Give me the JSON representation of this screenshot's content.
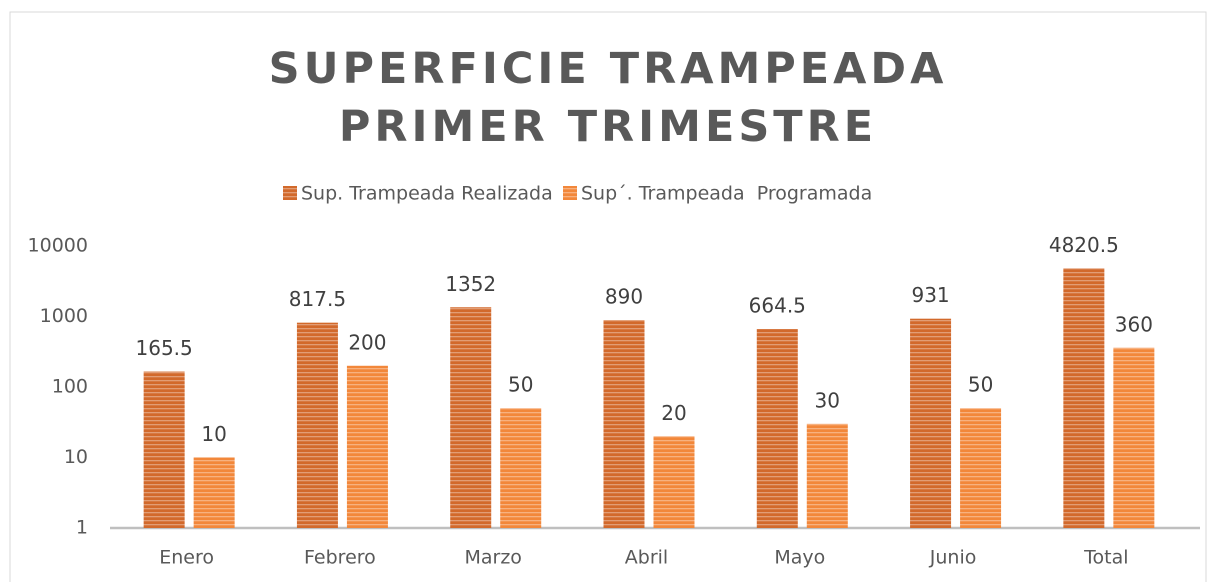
{
  "chart_data": {
    "type": "bar",
    "title": "SUPERFICIE TRAMPEADA PRIMER TRIMESTRE",
    "categories": [
      "Enero",
      "Febrero",
      "Marzo",
      "Abril",
      "Mayo",
      "Junio",
      "Total"
    ],
    "series": [
      {
        "name": "Sup. Trampeada Realizada",
        "color": "#d2692b",
        "values": [
          165.5,
          817.5,
          1352,
          890,
          664.5,
          931,
          4820.5
        ]
      },
      {
        "name": "Sup´. Trampeada  Programada",
        "color": "#f2873a",
        "values": [
          10,
          200,
          50,
          20,
          30,
          50,
          360
        ]
      }
    ],
    "ylim": [
      1,
      10000
    ],
    "yticks": [
      1,
      10,
      100,
      1000,
      10000
    ],
    "log_scale": true,
    "grid": false,
    "legend": "top"
  }
}
